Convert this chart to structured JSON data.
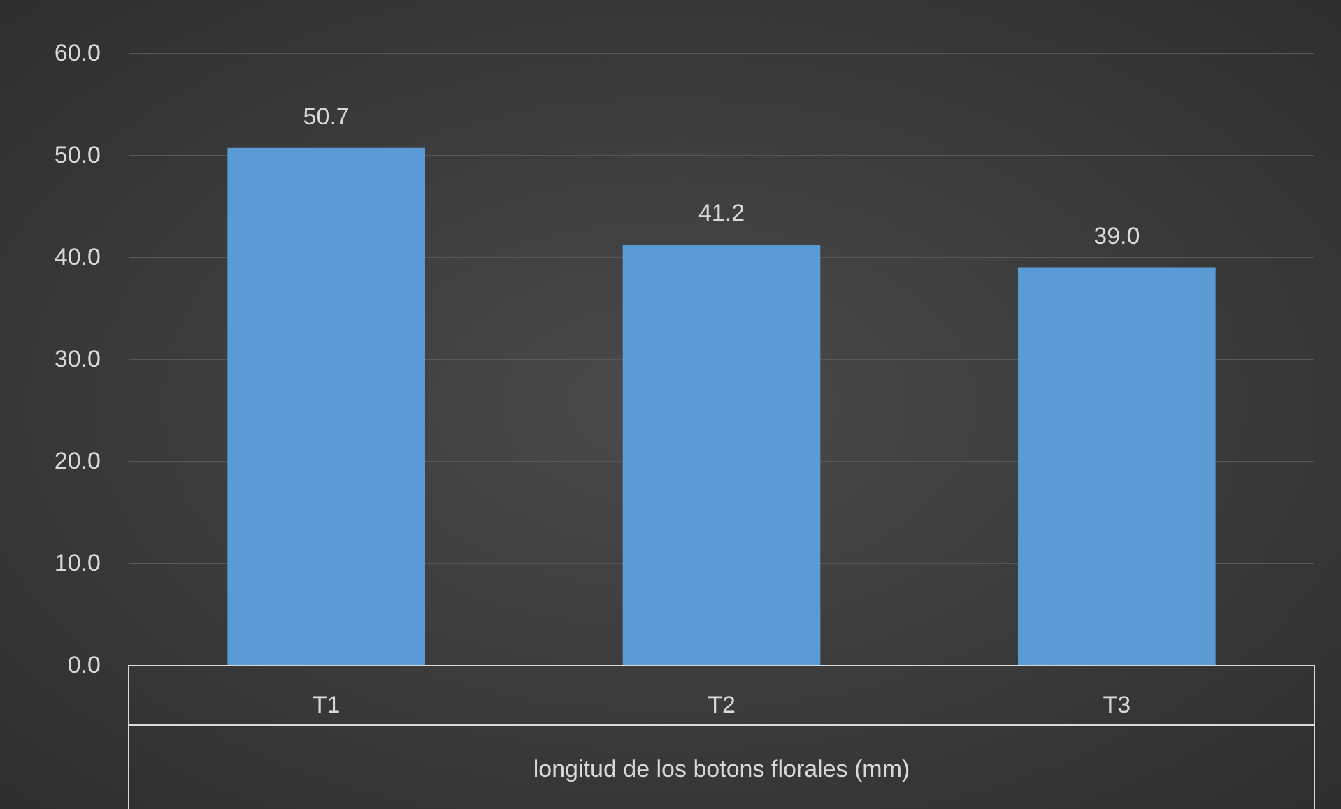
{
  "chart_data": {
    "type": "bar",
    "xlabel": "longitud de los botons florales (mm)",
    "categories": [
      "T1",
      "T2",
      "T3"
    ],
    "values": [
      50.7,
      41.2,
      39.0
    ],
    "value_labels": [
      "50.7",
      "41.2",
      "39.0"
    ],
    "color": "#5b9bd5",
    "ylim": [
      0,
      60
    ],
    "yticks": [
      {
        "value": 0,
        "label": "0.0"
      },
      {
        "value": 10,
        "label": "10.0"
      },
      {
        "value": 20,
        "label": "20.0"
      },
      {
        "value": 30,
        "label": "30.0"
      },
      {
        "value": 40,
        "label": "40.0"
      },
      {
        "value": 50,
        "label": "50.0"
      },
      {
        "value": 60,
        "label": "60.0"
      }
    ],
    "grid": true
  }
}
